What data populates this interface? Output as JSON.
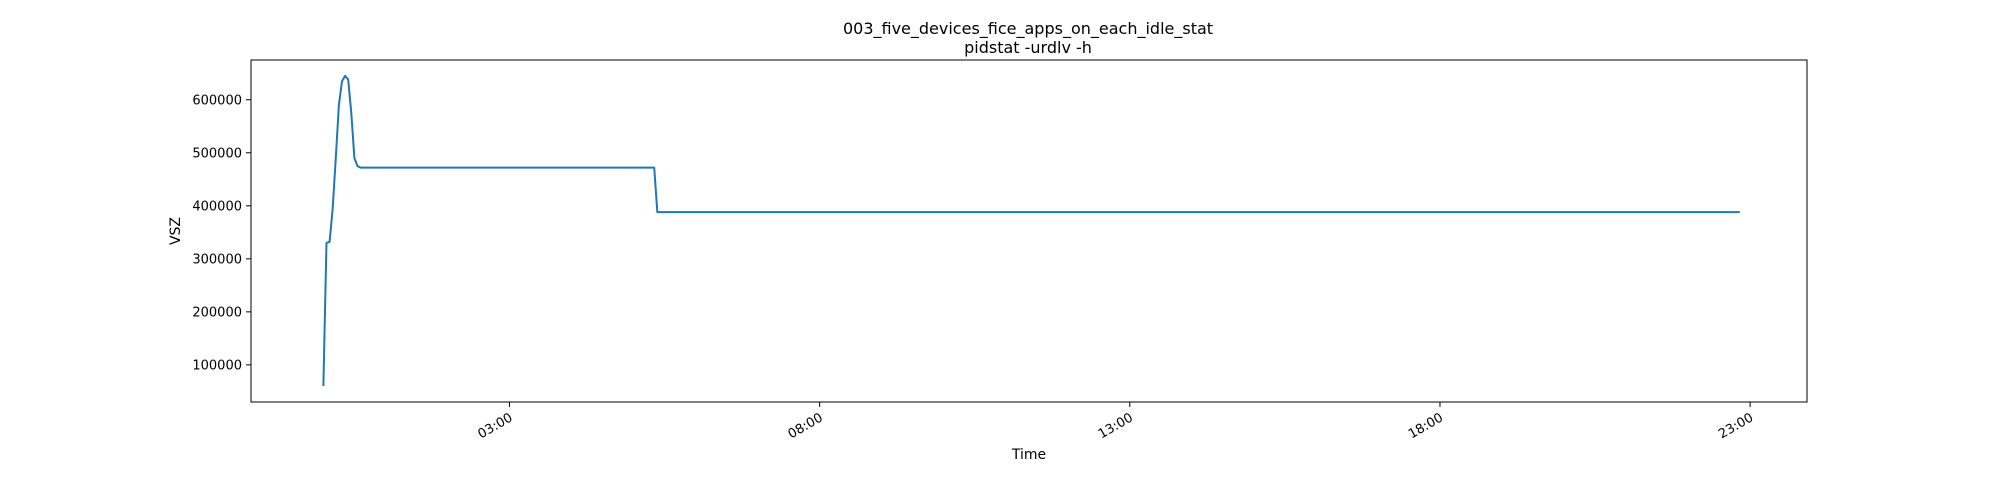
{
  "chart_data": {
    "type": "line",
    "title": "003_five_devices_fice_apps_on_each_idle_stat",
    "subtitle": "pidstat -urdlv -h",
    "xlabel": "Time",
    "ylabel": "VSZ",
    "xlim": [
      "-1:10",
      "23:55"
    ],
    "ylim": [
      30000,
      675000
    ],
    "grid": false,
    "x_ticks": [
      "03:00",
      "08:00",
      "13:00",
      "18:00",
      "23:00"
    ],
    "y_ticks": [
      100000,
      200000,
      300000,
      400000,
      500000,
      600000
    ],
    "y_tick_labels": [
      "100000",
      "200000",
      "300000",
      "400000",
      "500000",
      "600000"
    ],
    "series": [
      {
        "color": "#1f77b4",
        "x": [
          "0:00",
          "0:03",
          "0:06",
          "0:09",
          "0:12",
          "0:15",
          "0:18",
          "0:21",
          "0:24",
          "0:27",
          "0:30",
          "0:33",
          "0:36",
          "0:40",
          "0:45",
          "0:50",
          "5:20",
          "5:23",
          "22:50"
        ],
        "values": [
          60000,
          330000,
          332000,
          395000,
          490000,
          590000,
          635000,
          645000,
          638000,
          575000,
          490000,
          475000,
          472000,
          472000,
          472000,
          472000,
          472000,
          388000,
          388000
        ]
      }
    ]
  }
}
